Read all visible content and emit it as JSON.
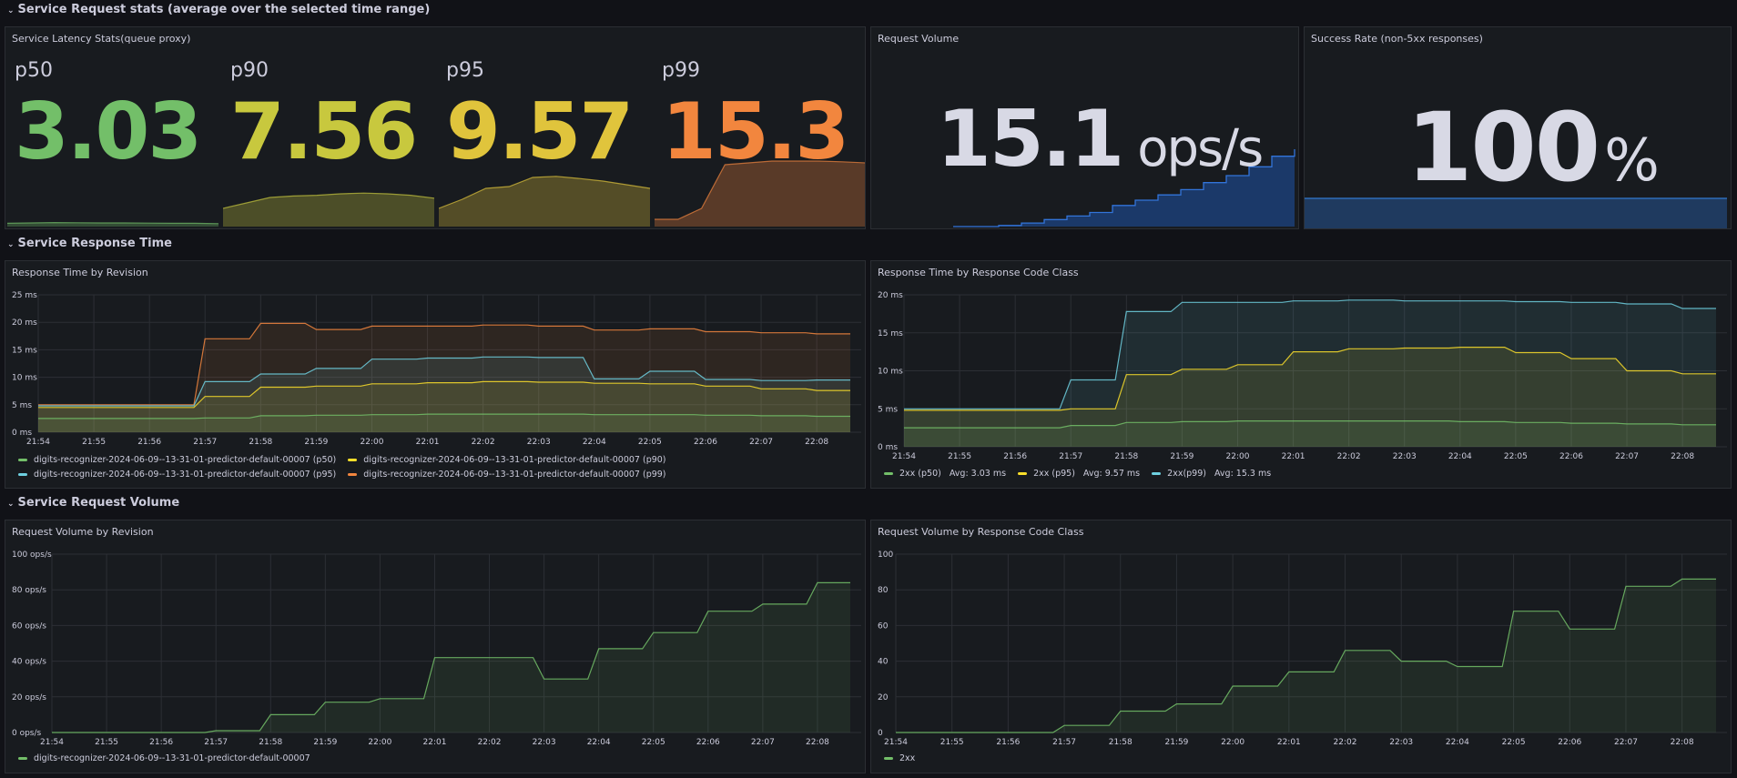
{
  "rows": {
    "stats": "Service Request stats (average over the selected time range)",
    "response_time": "Service Response Time",
    "request_volume": "Service Request Volume"
  },
  "latency_panel": {
    "title": "Service Latency Stats(queue proxy)",
    "stats": [
      {
        "label": "p50",
        "value": "3.03",
        "color": "#73bf69",
        "spark": [
          0.9,
          1.0,
          1.1,
          1.05,
          1.0,
          1.0,
          0.95,
          0.9,
          0.9,
          0.8
        ]
      },
      {
        "label": "p90",
        "value": "7.56",
        "color": "#c8c83e",
        "spark": [
          5,
          6.5,
          8,
          8.4,
          8.6,
          9.0,
          9.2,
          9.0,
          8.6,
          7.8
        ]
      },
      {
        "label": "p95",
        "value": "9.57",
        "color": "#e0c43c",
        "spark": [
          5,
          7.5,
          10.5,
          11,
          13.5,
          13.8,
          13.2,
          12.5,
          11.5,
          10.5
        ]
      },
      {
        "label": "p99",
        "value": "15.3",
        "color": "#f2863e",
        "spark": [
          2,
          2,
          5,
          17,
          17.5,
          18,
          18,
          18,
          17.8,
          17.5
        ]
      }
    ]
  },
  "request_volume_panel": {
    "title": "Request Volume",
    "value": "15.1",
    "unit": "ops/s",
    "spark": [
      0,
      0,
      0.3,
      1,
      2,
      3,
      4,
      6,
      7.5,
      9,
      10.5,
      12.5,
      14.5,
      17,
      20,
      22
    ]
  },
  "success_panel": {
    "title": "Success Rate (non-5xx responses)",
    "value": "100",
    "unit": "%"
  },
  "colors": {
    "green": "#73bf69",
    "yellow": "#fade2a",
    "blue": "#8ab8ff",
    "orange": "#ff9830",
    "cyan": "#6ed0e0",
    "volume_blue": "#1f60c4"
  },
  "time_ticks": [
    "21:54",
    "21:55",
    "21:56",
    "21:57",
    "21:58",
    "21:59",
    "22:00",
    "22:01",
    "22:02",
    "22:03",
    "22:04",
    "22:05",
    "22:06",
    "22:07",
    "22:08"
  ],
  "response_time_by_revision": {
    "title": "Response Time by Revision",
    "chart_data": {
      "type": "area",
      "x": [
        "21:54",
        "21:55",
        "21:56",
        "21:57",
        "21:58",
        "21:59",
        "22:00",
        "22:01",
        "22:02",
        "22:03",
        "22:04",
        "22:05",
        "22:06",
        "22:07",
        "22:08"
      ],
      "yticks": [
        "0 ms",
        "5 ms",
        "10 ms",
        "15 ms",
        "20 ms",
        "25 ms"
      ],
      "ylim": [
        0,
        25
      ],
      "series": [
        {
          "name": "digits-recognizer-2024-06-09--13-31-01-predictor-default-00007 (p99)",
          "color": "#f2863e",
          "values": [
            5,
            5,
            5,
            17,
            19.8,
            18.7,
            19.3,
            19.3,
            19.5,
            19.3,
            18.6,
            18.8,
            18.3,
            18.1,
            17.9
          ]
        },
        {
          "name": "digits-recognizer-2024-06-09--13-31-01-predictor-default-00007 (p95)",
          "color": "#6ed0e0",
          "values": [
            4.8,
            4.8,
            4.8,
            9.2,
            10.6,
            11.6,
            13.3,
            13.5,
            13.7,
            13.6,
            9.7,
            11.1,
            9.6,
            9.4,
            9.5
          ]
        },
        {
          "name": "digits-recognizer-2024-06-09--13-31-01-predictor-default-00007 (p90)",
          "color": "#fade2a",
          "values": [
            4.5,
            4.5,
            4.5,
            6.5,
            8.2,
            8.4,
            8.8,
            9.0,
            9.2,
            9.1,
            8.9,
            8.8,
            8.4,
            7.9,
            7.6
          ]
        },
        {
          "name": "digits-recognizer-2024-06-09--13-31-01-predictor-default-00007 (p50)",
          "color": "#73bf69",
          "values": [
            2.5,
            2.5,
            2.5,
            2.6,
            3.0,
            3.1,
            3.2,
            3.3,
            3.3,
            3.3,
            3.2,
            3.2,
            3.1,
            3.0,
            2.9
          ]
        }
      ]
    },
    "legend": [
      {
        "label": "digits-recognizer-2024-06-09--13-31-01-predictor-default-00007 (p50)",
        "color": "#73bf69"
      },
      {
        "label": "digits-recognizer-2024-06-09--13-31-01-predictor-default-00007 (p90)",
        "color": "#fade2a"
      },
      {
        "label": "digits-recognizer-2024-06-09--13-31-01-predictor-default-00007 (p95)",
        "color": "#6ed0e0"
      },
      {
        "label": "digits-recognizer-2024-06-09--13-31-01-predictor-default-00007 (p99)",
        "color": "#f2863e"
      }
    ]
  },
  "response_time_by_code": {
    "title": "Response Time by Response Code Class",
    "chart_data": {
      "type": "area",
      "x": [
        "21:54",
        "21:55",
        "21:56",
        "21:57",
        "21:58",
        "21:59",
        "22:00",
        "22:01",
        "22:02",
        "22:03",
        "22:04",
        "22:05",
        "22:06",
        "22:07",
        "22:08"
      ],
      "yticks": [
        "0 ms",
        "5 ms",
        "10 ms",
        "15 ms",
        "20 ms"
      ],
      "ylim": [
        0,
        20
      ],
      "series": [
        {
          "name": "2xx(p99)",
          "color": "#6ed0e0",
          "values": [
            5,
            5,
            5,
            8.8,
            17.8,
            19.0,
            19.0,
            19.2,
            19.3,
            19.2,
            19.2,
            19.1,
            19.0,
            18.8,
            18.2
          ]
        },
        {
          "name": "2xx (p95)",
          "color": "#fade2a",
          "values": [
            4.8,
            4.8,
            4.8,
            5.0,
            9.5,
            10.2,
            10.8,
            12.5,
            12.9,
            13.0,
            13.1,
            12.4,
            11.6,
            10.0,
            9.6
          ]
        },
        {
          "name": "2xx (p50)",
          "color": "#73bf69",
          "values": [
            2.5,
            2.5,
            2.5,
            2.8,
            3.2,
            3.3,
            3.4,
            3.4,
            3.4,
            3.4,
            3.3,
            3.2,
            3.1,
            3.0,
            2.9
          ]
        }
      ]
    },
    "legend": [
      {
        "label": "2xx (p50)",
        "avg": "Avg: 3.03 ms",
        "color": "#73bf69"
      },
      {
        "label": "2xx (p95)",
        "avg": "Avg: 9.57 ms",
        "color": "#fade2a"
      },
      {
        "label": "2xx(p99)",
        "avg": "Avg: 15.3 ms",
        "color": "#6ed0e0"
      }
    ]
  },
  "request_volume_by_revision": {
    "title": "Request Volume by Revision",
    "chart_data": {
      "type": "area",
      "x": [
        "21:54",
        "21:55",
        "21:56",
        "21:57",
        "21:58",
        "21:59",
        "22:00",
        "22:01",
        "22:02",
        "22:03",
        "22:04",
        "22:05",
        "22:06",
        "22:07",
        "22:08"
      ],
      "yticks": [
        "0 ops/s",
        "20 ops/s",
        "40 ops/s",
        "60 ops/s",
        "80 ops/s",
        "100 ops/s"
      ],
      "ylim": [
        0,
        100
      ],
      "series": [
        {
          "name": "digits-recognizer-2024-06-09--13-31-01-predictor-default-00007",
          "color": "#73bf69",
          "values": [
            0,
            0,
            0,
            1,
            10,
            17,
            19,
            42,
            42,
            30,
            47,
            56,
            68,
            72,
            84
          ]
        }
      ]
    },
    "legend": [
      {
        "label": "digits-recognizer-2024-06-09--13-31-01-predictor-default-00007",
        "color": "#73bf69"
      }
    ]
  },
  "request_volume_by_code": {
    "title": "Request Volume by Response Code Class",
    "chart_data": {
      "type": "area",
      "x": [
        "21:54",
        "21:55",
        "21:56",
        "21:57",
        "21:58",
        "21:59",
        "22:00",
        "22:01",
        "22:02",
        "22:03",
        "22:04",
        "22:05",
        "22:06",
        "22:07",
        "22:08"
      ],
      "yticks": [
        "0",
        "20",
        "40",
        "60",
        "80",
        "100"
      ],
      "ylim": [
        0,
        100
      ],
      "series": [
        {
          "name": "2xx",
          "color": "#73bf69",
          "values": [
            0,
            0,
            0,
            4,
            12,
            16,
            26,
            34,
            46,
            40,
            37,
            68,
            58,
            82,
            86
          ]
        }
      ]
    },
    "legend": [
      {
        "label": "2xx",
        "color": "#73bf69"
      }
    ]
  }
}
